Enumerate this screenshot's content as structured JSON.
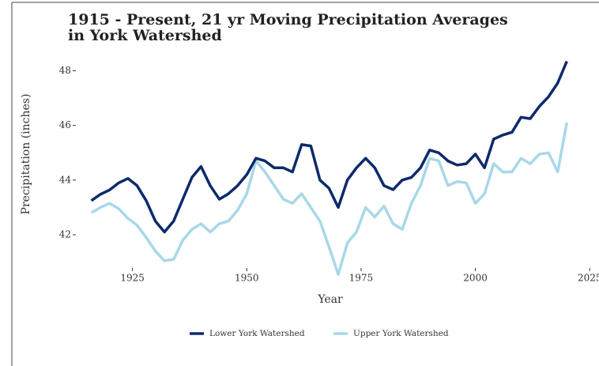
{
  "chart_data": {
    "type": "line",
    "title": [
      "1915 - Present, 21 yr Moving Precipitation Averages",
      "in York Watershed"
    ],
    "x_label": "Year",
    "y_label": "Precipitation (inches)",
    "x": [
      1916,
      1918,
      1920,
      1922,
      1924,
      1926,
      1928,
      1930,
      1932,
      1934,
      1936,
      1938,
      1940,
      1942,
      1944,
      1946,
      1948,
      1950,
      1952,
      1954,
      1956,
      1958,
      1960,
      1962,
      1964,
      1966,
      1968,
      1970,
      1972,
      1974,
      1976,
      1978,
      1980,
      1982,
      1984,
      1986,
      1988,
      1990,
      1992,
      1994,
      1996,
      1998,
      2000,
      2002,
      2004,
      2006,
      2008,
      2010,
      2012,
      2014,
      2016,
      2018,
      2020
    ],
    "series": [
      {
        "name": "Lower York Watershed",
        "color": "#0d2a6b",
        "values": [
          43.25,
          43.48,
          43.64,
          43.9,
          44.06,
          43.8,
          43.25,
          42.5,
          42.1,
          42.5,
          43.3,
          44.1,
          44.5,
          43.8,
          43.3,
          43.5,
          43.8,
          44.2,
          44.8,
          44.7,
          44.45,
          44.45,
          44.3,
          45.3,
          45.25,
          44.0,
          43.7,
          43.0,
          44.0,
          44.45,
          44.8,
          44.45,
          43.8,
          43.65,
          44.0,
          44.1,
          44.45,
          45.1,
          45.0,
          44.7,
          44.55,
          44.6,
          44.95,
          44.45,
          45.5,
          45.65,
          45.75,
          46.3,
          46.25,
          46.7,
          47.05,
          47.55,
          48.35
        ]
      },
      {
        "name": "Upper York Watershed",
        "color": "#a8d8e8",
        "values": [
          42.8,
          43.0,
          43.15,
          42.95,
          42.6,
          42.35,
          41.9,
          41.4,
          41.05,
          41.1,
          41.8,
          42.2,
          42.4,
          42.1,
          42.4,
          42.5,
          42.9,
          43.5,
          44.7,
          44.3,
          43.8,
          43.3,
          43.15,
          43.5,
          43.0,
          42.5,
          41.55,
          40.55,
          41.7,
          42.1,
          43.0,
          42.65,
          43.05,
          42.4,
          42.2,
          43.15,
          43.8,
          44.8,
          44.7,
          43.8,
          43.95,
          43.9,
          43.15,
          43.5,
          44.6,
          44.3,
          44.3,
          44.8,
          44.6,
          44.95,
          45.0,
          44.3,
          46.1
        ]
      }
    ],
    "xlim": [
      1914,
      2026
    ],
    "xticks": [
      1925,
      1950,
      1975,
      2000,
      2025
    ],
    "ylim": [
      40.9,
      49.0
    ],
    "yticks": [
      42,
      44,
      46,
      48
    ],
    "grid": false,
    "legend": "bottom"
  }
}
